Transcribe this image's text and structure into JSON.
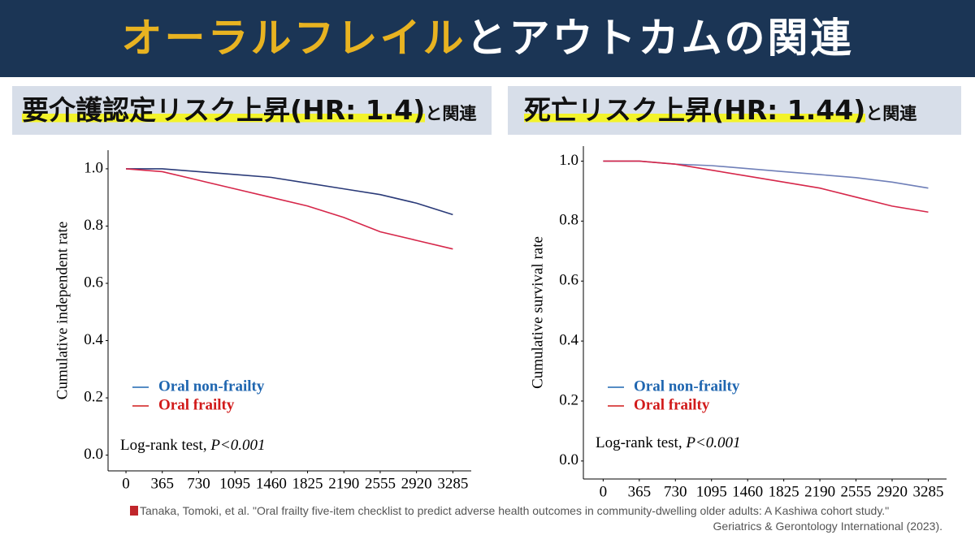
{
  "header": {
    "title_highlight": "オーラルフレイル",
    "title_rest": "とアウトカムの関連"
  },
  "chart_data": [
    {
      "type": "line",
      "title": "要介護認定リスク上昇(HR: 1.4)",
      "title_suffix": "と関連",
      "y_label": "Cumulative independent rate",
      "annotation": "Log-rank test, ",
      "annotation_italic": "P<0.001",
      "x": [
        0,
        365,
        730,
        1095,
        1460,
        1825,
        2190,
        2555,
        2920,
        3285
      ],
      "xlim": [
        -180,
        3470
      ],
      "xticks": [
        0,
        365,
        730,
        1095,
        1460,
        1825,
        2190,
        2555,
        2920,
        3285
      ],
      "ylim": [
        -0.055,
        1.065
      ],
      "yticks": [
        {
          "value": 0,
          "label": "0.0"
        },
        0.2,
        0.4,
        0.6,
        0.8,
        {
          "value": 1,
          "label": "1.0"
        }
      ],
      "series": [
        {
          "name": "Oral non-frailty",
          "color": "#2a3a78",
          "label_color": "#1f66b0",
          "values": [
            1.0,
            1.0,
            0.99,
            0.98,
            0.97,
            0.95,
            0.93,
            0.91,
            0.88,
            0.84
          ]
        },
        {
          "name": "Oral frailty",
          "color": "#d6274a",
          "label_color": "#d11a1a",
          "values": [
            1.0,
            0.99,
            0.96,
            0.93,
            0.9,
            0.87,
            0.83,
            0.78,
            0.75,
            0.72
          ]
        }
      ]
    },
    {
      "type": "line",
      "title": "死亡リスク上昇(HR: 1.44)",
      "title_suffix": "と関連",
      "y_label": "Cumulative survival rate",
      "annotation": "Log-rank test, ",
      "annotation_italic": "P<0.001",
      "x": [
        0,
        365,
        730,
        1095,
        1460,
        1825,
        2190,
        2555,
        2920,
        3285
      ],
      "xlim": [
        -200,
        3470
      ],
      "xticks": [
        0,
        365,
        730,
        1095,
        1460,
        1825,
        2190,
        2555,
        2920,
        3285
      ],
      "ylim": [
        -0.06,
        1.05
      ],
      "yticks": [
        {
          "value": 0,
          "label": "0.0"
        },
        0.2,
        0.4,
        0.6,
        0.8,
        {
          "value": 1,
          "label": "1.0"
        }
      ],
      "series": [
        {
          "name": "Oral non-frailty",
          "color": "#6f7fb8",
          "label_color": "#1f66b0",
          "values": [
            1.0,
            1.0,
            0.99,
            0.985,
            0.975,
            0.965,
            0.955,
            0.945,
            0.93,
            0.91
          ]
        },
        {
          "name": "Oral frailty",
          "color": "#d6274a",
          "label_color": "#d11a1a",
          "values": [
            1.0,
            1.0,
            0.99,
            0.97,
            0.95,
            0.93,
            0.91,
            0.88,
            0.85,
            0.83
          ]
        }
      ]
    }
  ],
  "citation": [
    "Tanaka, Tomoki, et al. \"Oral frailty five-item checklist to predict adverse health outcomes in community-dwelling older adults: A Kashiwa cohort study.\"",
    "Geriatrics & Gerontology International (2023)."
  ]
}
